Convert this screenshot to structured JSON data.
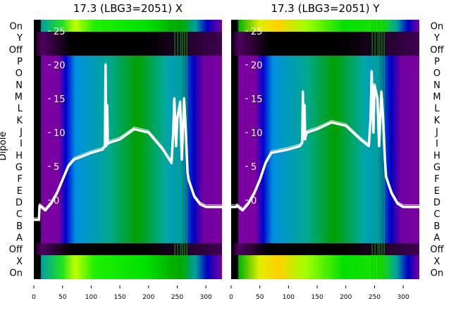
{
  "chart_data": [
    {
      "type": "heatmap",
      "title": "17.3 (LBG3=2051) X",
      "ylabel": "Dipole",
      "row_labels": [
        "On",
        "Y",
        "Off",
        "P",
        "O",
        "N",
        "M",
        "L",
        "K",
        "J",
        "I",
        "H",
        "G",
        "F",
        "E",
        "D",
        "C",
        "B",
        "A",
        "Off",
        "X",
        "On"
      ],
      "x_ticks": [
        0,
        50,
        100,
        150,
        200,
        250,
        300
      ],
      "xlim": [
        0,
        328
      ],
      "overlay_y_ticks": [
        0,
        5,
        10,
        15,
        20,
        25
      ],
      "overlay_ylim": [
        -6,
        27
      ],
      "overlay_line": {
        "x": [
          0,
          9,
          10,
          20,
          30,
          40,
          50,
          60,
          70,
          100,
          120,
          124,
          125,
          126,
          128,
          129,
          130,
          132,
          150,
          175,
          200,
          225,
          240,
          243,
          245,
          248,
          250,
          255,
          258,
          262,
          265,
          268,
          270,
          280,
          290,
          300,
          315,
          328
        ],
        "y": [
          -2.9,
          -2.9,
          -0.8,
          -1.5,
          -0.5,
          1,
          3,
          5,
          6,
          7,
          7.5,
          8,
          20,
          8,
          14,
          8.3,
          8.5,
          8.5,
          9,
          10.5,
          10,
          7.5,
          5.5,
          10,
          15,
          8,
          12,
          14.5,
          6,
          15,
          10,
          4,
          3,
          0.5,
          -0.6,
          -1,
          -1,
          -1
        ]
      }
    },
    {
      "type": "heatmap",
      "title": "17.3 (LBG3=2051) Y",
      "row_labels": [
        "On",
        "Y",
        "Off",
        "P",
        "O",
        "N",
        "M",
        "L",
        "K",
        "J",
        "I",
        "H",
        "G",
        "F",
        "E",
        "D",
        "C",
        "B",
        "A",
        "Off",
        "X",
        "On"
      ],
      "x_ticks": [
        0,
        50,
        100,
        150,
        200,
        250,
        300
      ],
      "xlim": [
        0,
        328
      ],
      "overlay_y_ticks": [
        0,
        5,
        10,
        15,
        20,
        25
      ],
      "overlay_ylim": [
        -6,
        27
      ],
      "overlay_line": {
        "x": [
          0,
          9,
          10,
          20,
          30,
          40,
          50,
          60,
          70,
          100,
          120,
          124,
          125,
          126,
          128,
          129,
          130,
          132,
          150,
          175,
          200,
          225,
          240,
          243,
          245,
          248,
          250,
          255,
          258,
          262,
          265,
          268,
          270,
          280,
          290,
          300,
          315,
          328
        ],
        "y": [
          -1,
          -1,
          -0.8,
          -1.5,
          -0.5,
          1,
          3,
          5.5,
          7,
          7.5,
          8,
          8.5,
          16,
          9,
          14,
          9,
          9.5,
          10,
          10.5,
          11.5,
          11,
          9,
          8,
          12,
          19,
          10,
          17,
          15,
          8,
          16,
          12,
          6,
          3.5,
          1,
          -0.5,
          -1,
          -1,
          -1
        ]
      }
    }
  ]
}
